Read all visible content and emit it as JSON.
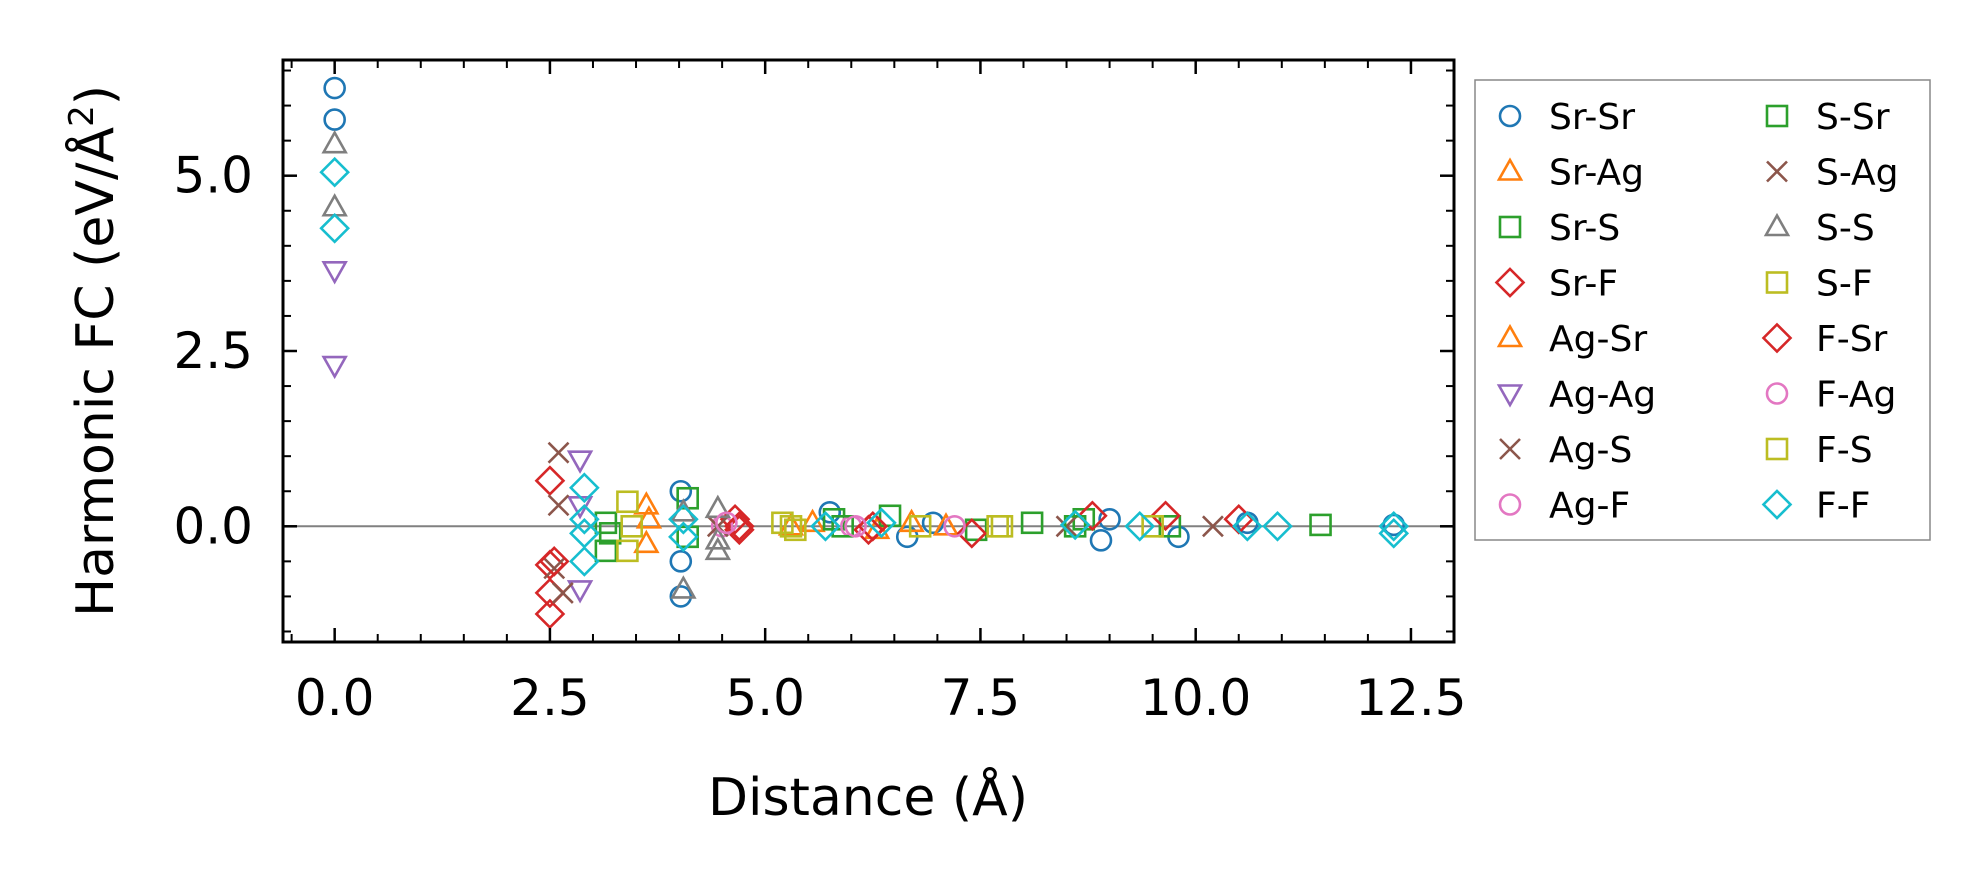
{
  "chart_data": {
    "type": "scatter",
    "title": "",
    "xlabel": "Distance (Å)",
    "ylabel_main": "Harmonic FC (eV/Å",
    "ylabel_sup": "2",
    "ylabel_close": ")",
    "xlim": [
      -0.6,
      13.0
    ],
    "ylim": [
      -1.65,
      6.65
    ],
    "xticks": [
      0.0,
      2.5,
      5.0,
      7.5,
      10.0,
      12.5
    ],
    "xtick_labels": [
      "0.0",
      "2.5",
      "5.0",
      "7.5",
      "10.0",
      "12.5"
    ],
    "yticks": [
      0.0,
      2.5,
      5.0
    ],
    "ytick_labels": [
      "0.0",
      "2.5",
      "5.0"
    ],
    "zero_line": true,
    "legend_position": "right",
    "series": [
      {
        "name": "Sr-Sr",
        "color": "#1f77b4",
        "marker": "o",
        "x": [
          0.0,
          0.0,
          4.02,
          4.02,
          4.02,
          5.75,
          6.65,
          6.95,
          8.9,
          9.0,
          9.8,
          10.6,
          12.3
        ],
        "y": [
          6.25,
          5.8,
          0.5,
          -0.5,
          -1.0,
          0.2,
          -0.15,
          0.05,
          -0.2,
          0.1,
          -0.15,
          0.05,
          0.02
        ]
      },
      {
        "name": "Sr-Ag",
        "color": "#ff7f0e",
        "marker": "^",
        "x": [
          3.62,
          3.62,
          5.55,
          6.3,
          7.1
        ],
        "y": [
          0.3,
          -0.25,
          0.05,
          -0.05,
          0.0
        ]
      },
      {
        "name": "Sr-S",
        "color": "#2ca02c",
        "marker": "s",
        "x": [
          3.15,
          3.15,
          4.1,
          4.1,
          5.8,
          6.45,
          7.45,
          8.1,
          8.7,
          9.7,
          11.45
        ],
        "y": [
          0.05,
          -0.35,
          0.4,
          -0.15,
          0.1,
          0.15,
          -0.05,
          0.05,
          0.1,
          0.0,
          0.02
        ]
      },
      {
        "name": "Sr-F",
        "color": "#d62728",
        "marker": "D",
        "x": [
          2.5,
          2.5,
          2.5,
          2.5,
          4.65,
          4.7,
          6.2,
          7.4,
          8.8,
          9.65,
          10.5
        ],
        "y": [
          0.65,
          -0.55,
          -0.95,
          -1.25,
          0.1,
          -0.05,
          -0.05,
          -0.1,
          0.15,
          0.15,
          0.1
        ]
      },
      {
        "name": "Ag-Sr",
        "color": "#ff7f0e",
        "marker": "^",
        "x": [
          3.65,
          5.3,
          6.7
        ],
        "y": [
          0.1,
          0.0,
          0.05
        ]
      },
      {
        "name": "Ag-Ag",
        "color": "#9467bd",
        "marker": "v",
        "x": [
          0.0,
          0.0,
          2.85,
          2.85,
          2.85
        ],
        "y": [
          3.65,
          2.3,
          0.95,
          0.3,
          -0.9
        ]
      },
      {
        "name": "Ag-S",
        "color": "#8c564b",
        "marker": "x",
        "x": [
          2.6,
          2.6,
          2.65,
          8.5,
          10.2
        ],
        "y": [
          1.05,
          0.3,
          -0.95,
          0.0,
          0.0
        ]
      },
      {
        "name": "Ag-F",
        "color": "#e377c2",
        "marker": "o",
        "x": [
          4.5,
          6.0,
          7.2
        ],
        "y": [
          0.0,
          0.0,
          0.0
        ]
      },
      {
        "name": "S-Sr",
        "color": "#2ca02c",
        "marker": "s",
        "x": [
          3.2,
          5.9,
          8.6
        ],
        "y": [
          -0.1,
          0.0,
          0.0
        ]
      },
      {
        "name": "S-Ag",
        "color": "#8c564b",
        "marker": "x",
        "x": [
          2.55,
          4.45
        ],
        "y": [
          -0.6,
          0.0
        ]
      },
      {
        "name": "S-S",
        "color": "#7f7f7f",
        "marker": "^",
        "x": [
          0.0,
          0.0,
          4.05,
          4.05,
          4.45,
          4.45,
          4.45
        ],
        "y": [
          5.45,
          4.55,
          0.2,
          -0.9,
          0.25,
          -0.2,
          -0.35
        ]
      },
      {
        "name": "S-F",
        "color": "#bcbd22",
        "marker": "s",
        "x": [
          3.4,
          3.4,
          5.2,
          5.35,
          6.8,
          7.7,
          9.5
        ],
        "y": [
          0.35,
          -0.35,
          0.05,
          -0.05,
          0.0,
          0.0,
          0.0
        ]
      },
      {
        "name": "F-Sr",
        "color": "#d62728",
        "marker": "D",
        "x": [
          2.55,
          4.7,
          6.25
        ],
        "y": [
          -0.5,
          0.0,
          0.0
        ]
      },
      {
        "name": "F-Ag",
        "color": "#e377c2",
        "marker": "o",
        "x": [
          4.55,
          6.05
        ],
        "y": [
          0.05,
          0.0
        ]
      },
      {
        "name": "F-S",
        "color": "#bcbd22",
        "marker": "s",
        "x": [
          3.45,
          5.3,
          7.75
        ],
        "y": [
          0.0,
          0.0,
          0.0
        ]
      },
      {
        "name": "F-F",
        "color": "#17becf",
        "marker": "D",
        "x": [
          0.0,
          0.0,
          2.9,
          2.9,
          2.9,
          2.9,
          4.05,
          4.05,
          5.7,
          6.35,
          8.6,
          9.35,
          10.6,
          10.95,
          12.3,
          12.3
        ],
        "y": [
          5.05,
          4.25,
          0.55,
          0.1,
          -0.1,
          -0.5,
          0.1,
          -0.15,
          0.0,
          0.05,
          0.02,
          0.0,
          0.0,
          0.0,
          0.0,
          -0.1
        ]
      }
    ]
  }
}
